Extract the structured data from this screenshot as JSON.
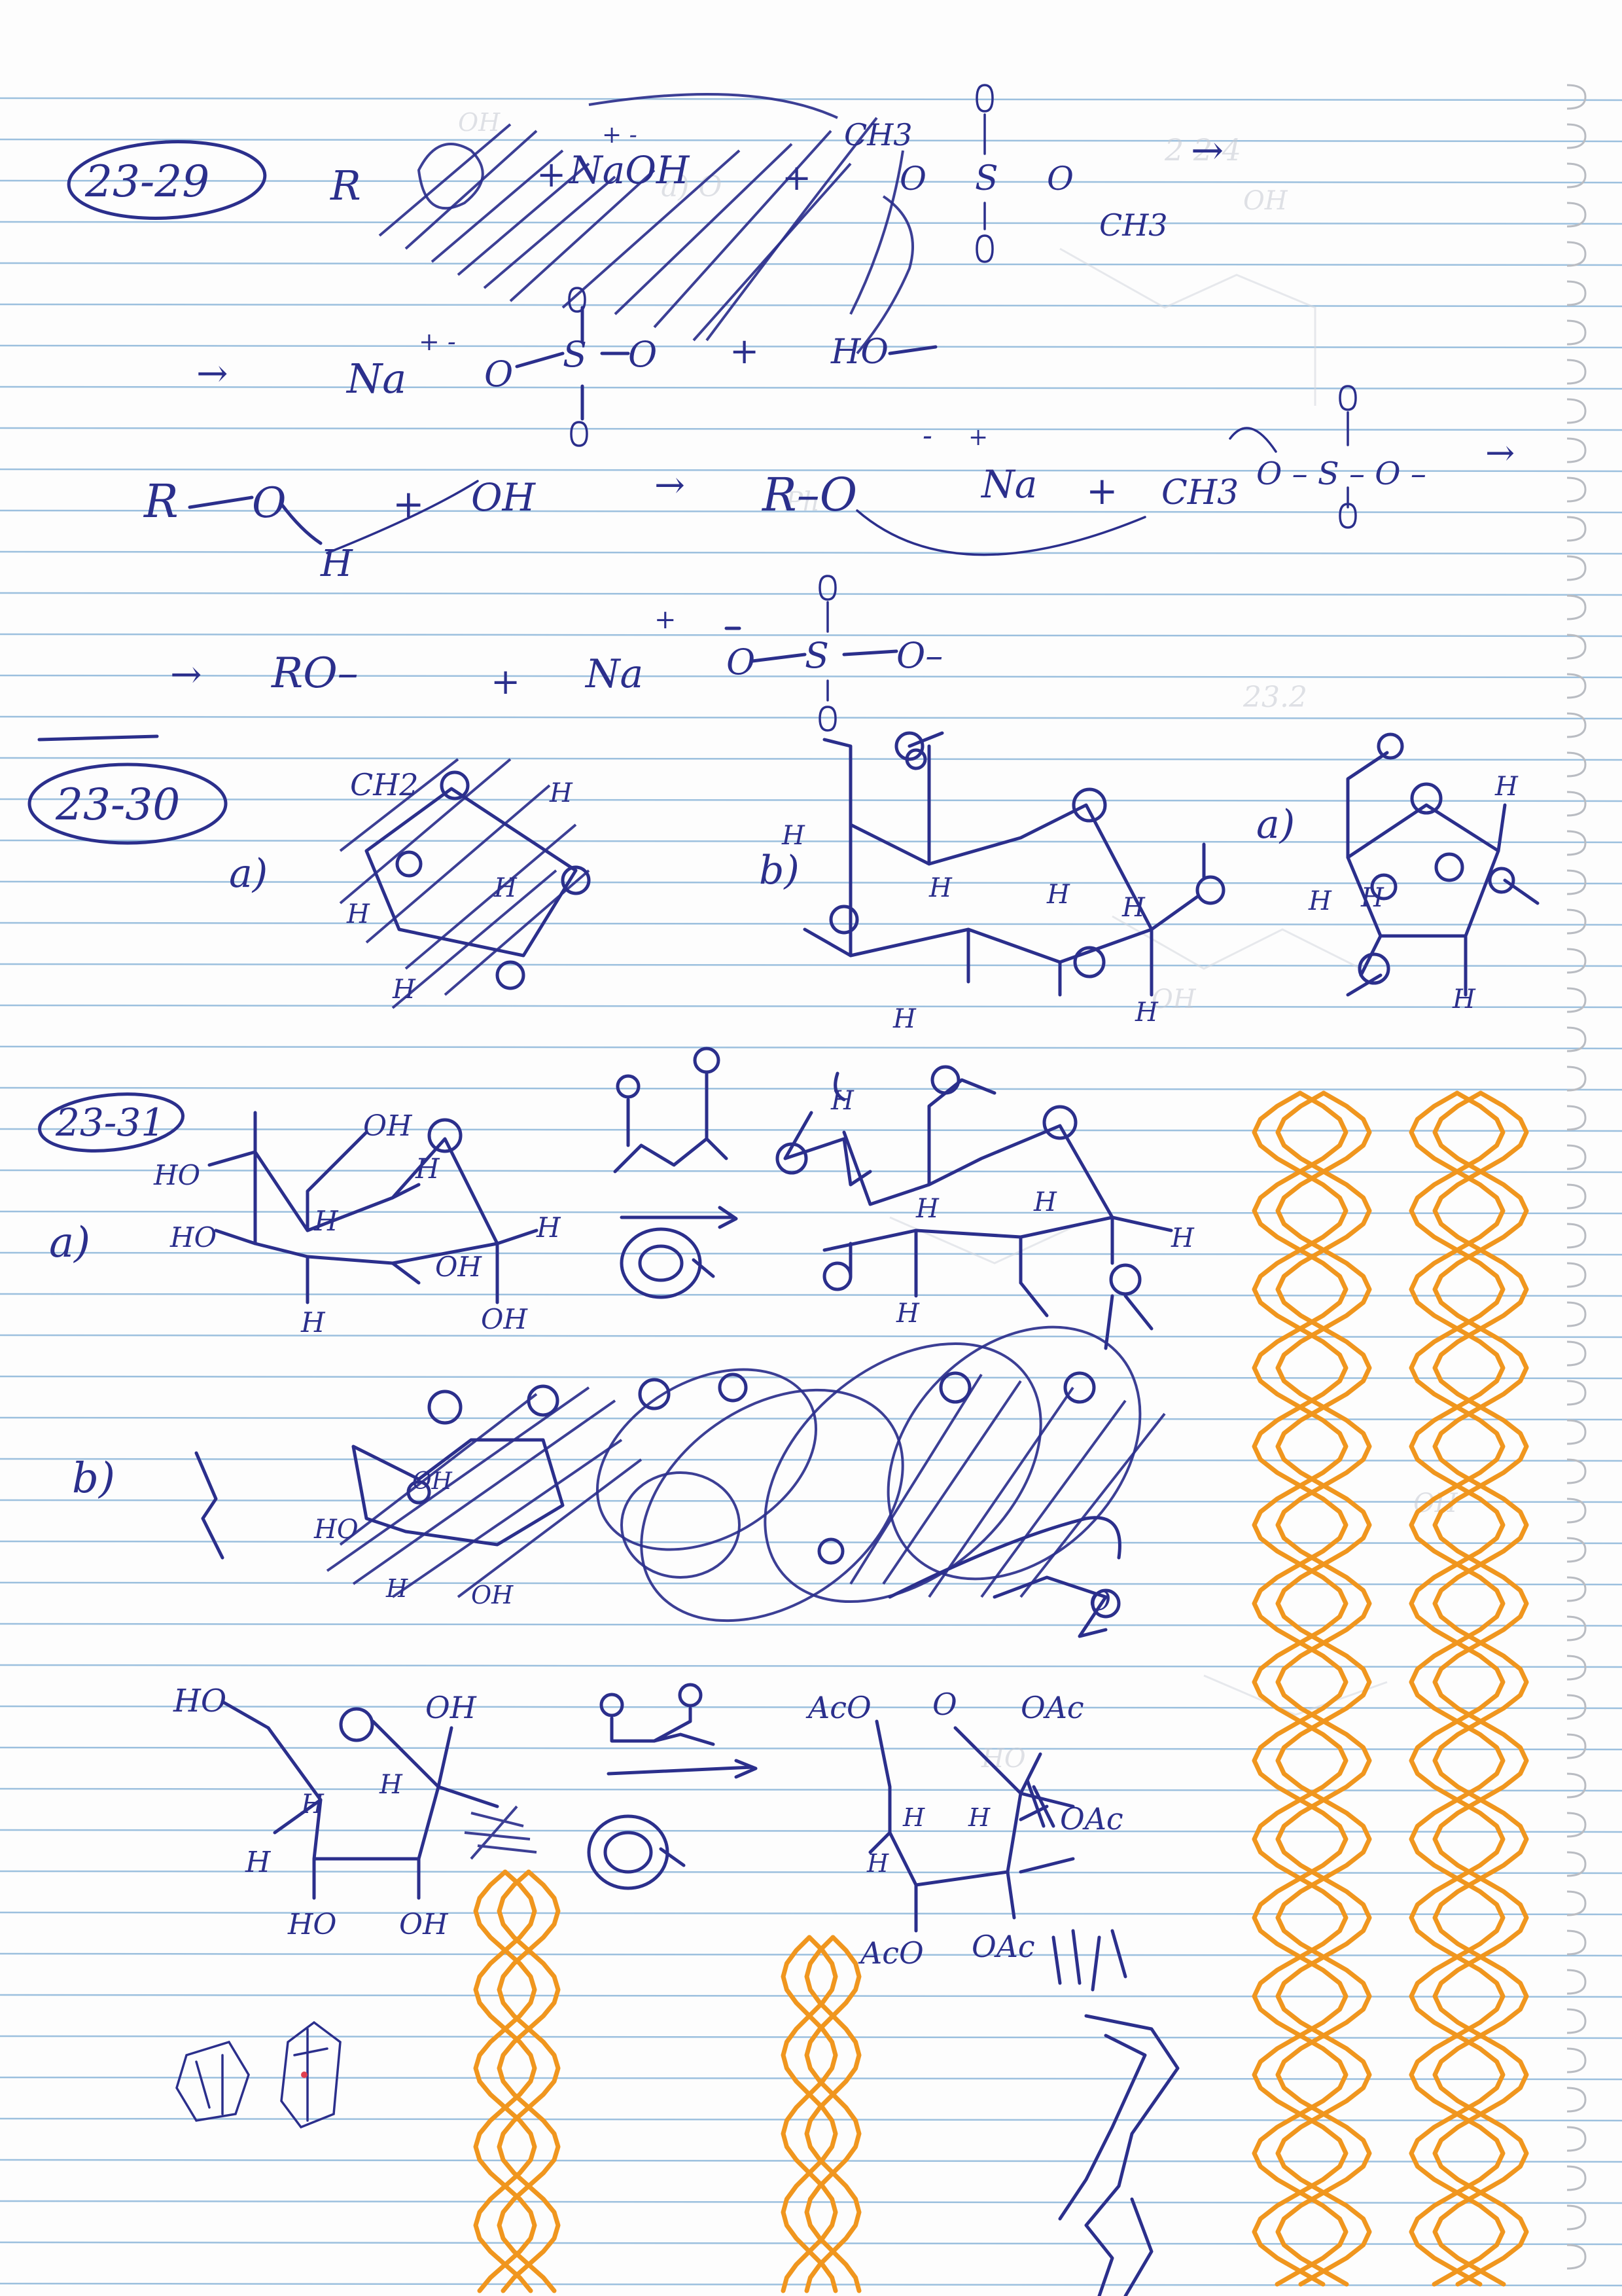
{
  "page": {
    "paper_color": "#fdfdfd",
    "ink_color": "#2b2f8c",
    "rule_color": "#9cc0de",
    "doodle_color": "#f0961e"
  },
  "problem_23_29": {
    "number": "23-29",
    "line1": {
      "reactant_r": "R",
      "naoh": "NaOH",
      "naoh_charge": "+  -",
      "plus1": "+",
      "plus2": "+",
      "ch3_a": "CH3",
      "ch3_b": "CH3",
      "o1": "O",
      "s": "S",
      "o2": "O",
      "arrow": "→"
    },
    "line2": {
      "arrow": "→",
      "na": "Na",
      "charges": "+  -",
      "o": "O",
      "s": "S",
      "plus": "+",
      "ho": "HO"
    },
    "line3": {
      "r": "R",
      "o": "O",
      "h": "H",
      "plus": "+",
      "oh": "OH",
      "arrow": "→",
      "ro": "R–O",
      "minus": "-",
      "na": "Na",
      "plus_charge": "+",
      "plus2": "+",
      "ch3": "CH3",
      "o_chain": "O – S – O –",
      "arrow_end": "→"
    },
    "line4": {
      "arrow": "→",
      "ro": "RO–",
      "plus": "+",
      "na": "Na",
      "charge": "+",
      "o_minus": "O",
      "s": "S",
      "o_end": "O–"
    }
  },
  "problem_23_30": {
    "number": "23-30",
    "part_a_label": "a)",
    "part_b_label": "b)",
    "part_c_label": "a)",
    "ch2": "CH2",
    "h_labels": [
      "H",
      "H",
      "H",
      "H"
    ]
  },
  "problem_23_31": {
    "number": "23-31",
    "part_a_label": "a)",
    "part_b_label": "b)",
    "a_labels": {
      "oh_top": "OH",
      "ho1": "HO",
      "ho2": "HO",
      "h1": "H",
      "h2": "H",
      "oh_bottom": "OH",
      "oh_right": "OH",
      "h3": "H"
    },
    "b_labels": {
      "ho": "HO",
      "oh": "OH",
      "h": "H",
      "oh_bottom": "OH"
    },
    "c_labels": {
      "ho_top": "HO",
      "oh_top": "OH",
      "h_left": "H",
      "ho_bottom": "HO",
      "oh_bottom": "OH",
      "aco_top": "AcO",
      "oac_top": "OAc",
      "oac_right": "OAc",
      "aco_bottom": "AcO",
      "oac_bottom": "OAc"
    }
  }
}
